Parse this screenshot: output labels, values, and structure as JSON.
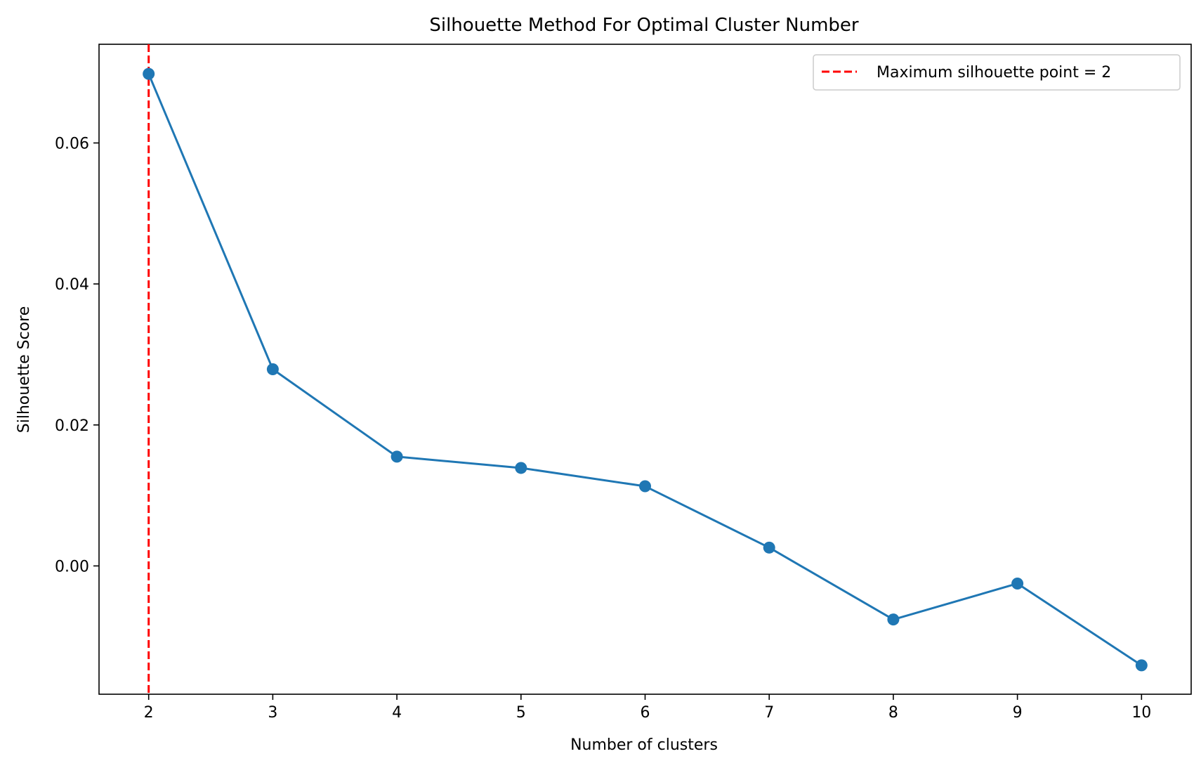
{
  "chart_data": {
    "type": "line",
    "title": "Silhouette Method For Optimal Cluster Number",
    "xlabel": "Number of clusters",
    "ylabel": "Silhouette Score",
    "x": [
      2,
      3,
      4,
      5,
      6,
      7,
      8,
      9,
      10
    ],
    "series": [
      {
        "values": [
          0.0698,
          0.0279,
          0.0155,
          0.0139,
          0.0113,
          0.0026,
          -0.0076,
          -0.0025,
          -0.0141
        ],
        "color": "#1f77b4",
        "marker": "circle"
      }
    ],
    "vline": {
      "x": 2,
      "label": "Maximum silhouette point = 2",
      "color": "#ff0000",
      "style": "dashed"
    },
    "xticks": [
      "2",
      "3",
      "4",
      "5",
      "6",
      "7",
      "8",
      "9",
      "10"
    ],
    "yticks": [
      {
        "value": 0.0,
        "label": "0.00"
      },
      {
        "value": 0.02,
        "label": "0.02"
      },
      {
        "value": 0.04,
        "label": "0.04"
      },
      {
        "value": 0.06,
        "label": "0.06"
      }
    ],
    "xlim": [
      1.6,
      10.4
    ],
    "ylim": [
      -0.0182,
      0.074
    ],
    "grid": false,
    "legend_position": "top-right"
  }
}
